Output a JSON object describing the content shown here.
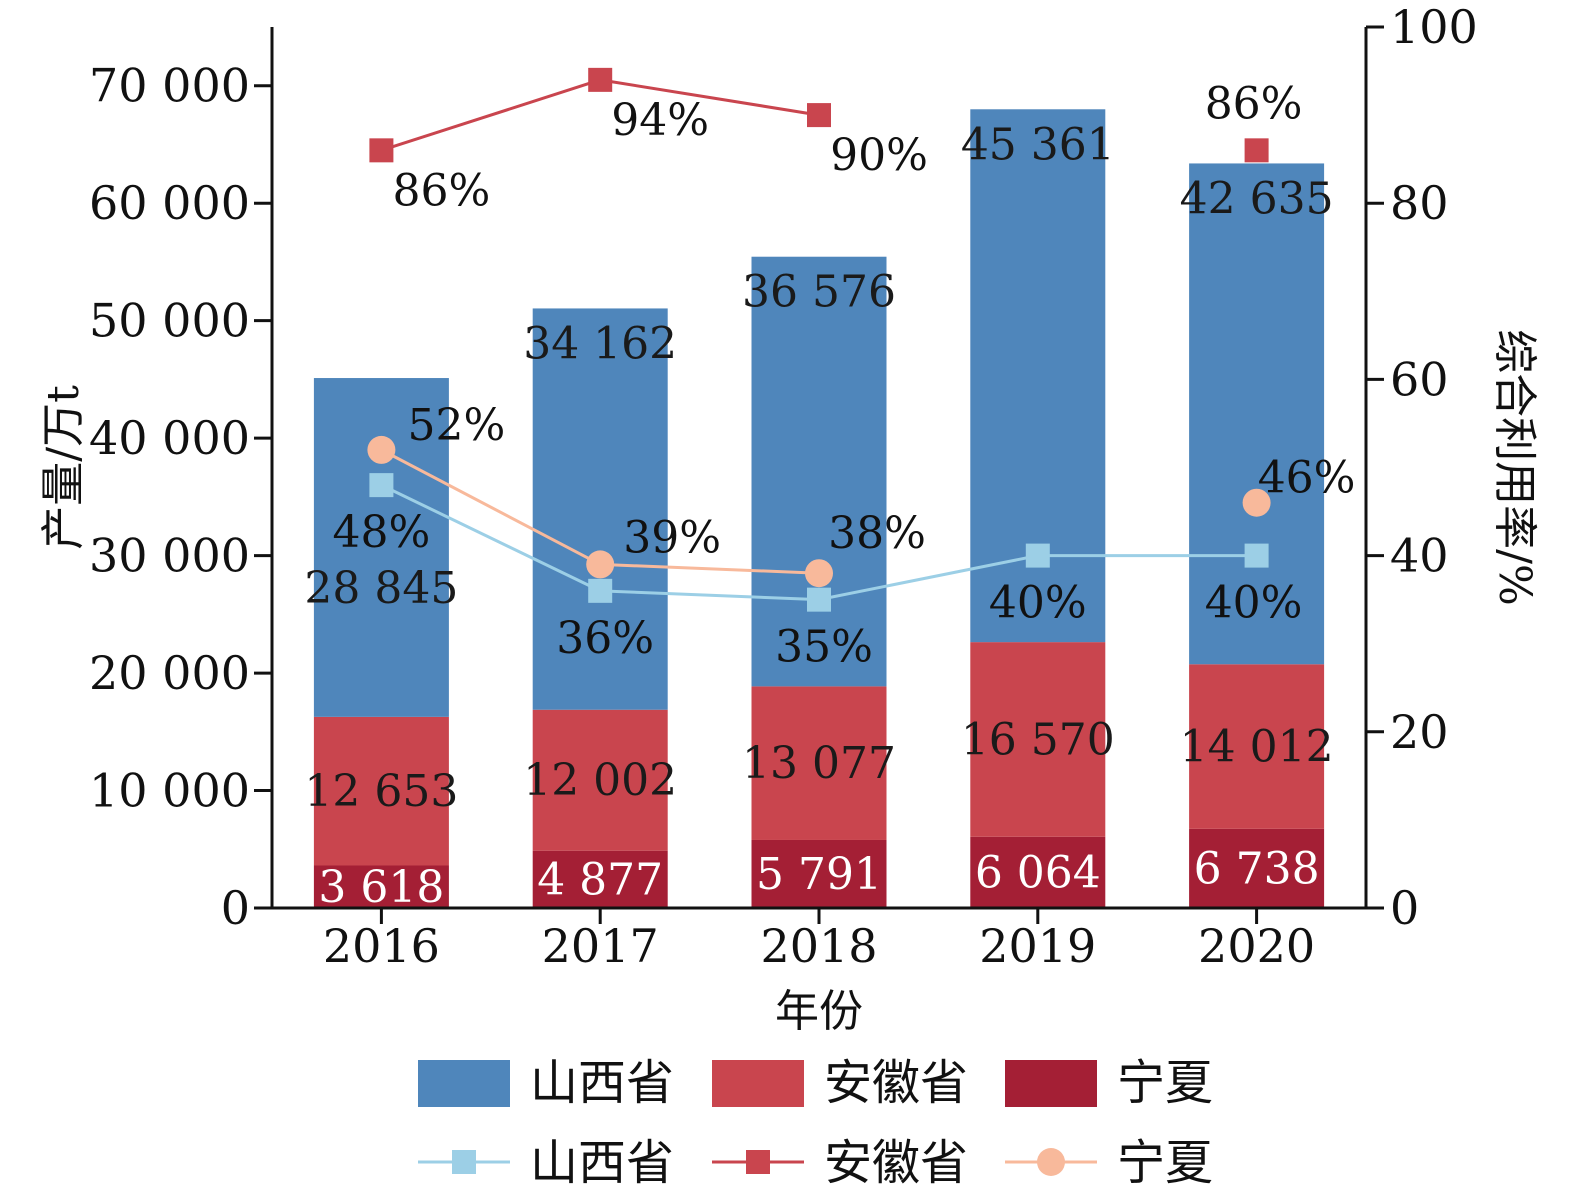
{
  "chart_data": {
    "type": "bar",
    "stacked": true,
    "xlabel": "年份",
    "ylabel_left": "产量/万t",
    "ylabel_right": "综合利用率/%",
    "ylim_left": [
      0,
      75000
    ],
    "ylim_right": [
      0,
      100
    ],
    "yticks_left": [
      "0",
      "10 000",
      "20 000",
      "30 000",
      "40 000",
      "50 000",
      "60 000",
      "70 000"
    ],
    "yticks_right": [
      "0",
      "20",
      "40",
      "60",
      "80",
      "100"
    ],
    "categories": [
      "2016",
      "2017",
      "2018",
      "2019",
      "2020"
    ],
    "bar_series": [
      {
        "name": "宁夏",
        "color": "#A41F35",
        "values": [
          3618,
          4877,
          5791,
          6064,
          6738
        ],
        "labels": [
          "3 618",
          "4 877",
          "5 791",
          "6 064",
          "6 738"
        ],
        "label_color": "#ffffff"
      },
      {
        "name": "安徽省",
        "color": "#C9454E",
        "values": [
          12653,
          12002,
          13077,
          16570,
          14012
        ],
        "labels": [
          "12 653",
          "12 002",
          "13 077",
          "16 570",
          "14 012"
        ],
        "label_color": "#1a1a1a"
      },
      {
        "name": "山西省",
        "color": "#4F86BB",
        "values": [
          28845,
          34162,
          36576,
          45361,
          42635
        ],
        "labels": [
          "28 845",
          "34 162",
          "36 576",
          "45 361",
          "42 635"
        ],
        "label_color": "#1a1a1a"
      }
    ],
    "line_series": [
      {
        "name": "山西省",
        "color": "#9CCFE6",
        "marker": "square",
        "values": [
          48,
          36,
          35,
          40,
          40
        ],
        "labels": [
          "48%",
          "36%",
          "35%",
          "40%",
          "40%"
        ]
      },
      {
        "name": "安徽省",
        "color": "#C9454E",
        "marker": "square",
        "values": [
          86,
          94,
          90,
          null,
          86
        ],
        "labels": [
          "86%",
          "94%",
          "90%",
          null,
          "86%"
        ]
      },
      {
        "name": "宁夏",
        "color": "#F8B99B",
        "marker": "circle",
        "values": [
          52,
          39,
          38,
          null,
          46
        ],
        "labels": [
          "52%",
          "39%",
          "38%",
          null,
          "46%"
        ]
      }
    ],
    "legend": {
      "bar_entries": [
        "山西省",
        "安徽省",
        "宁夏"
      ],
      "line_entries": [
        "山西省",
        "安徽省",
        "宁夏"
      ],
      "placement": "bottom"
    },
    "grid": false
  }
}
